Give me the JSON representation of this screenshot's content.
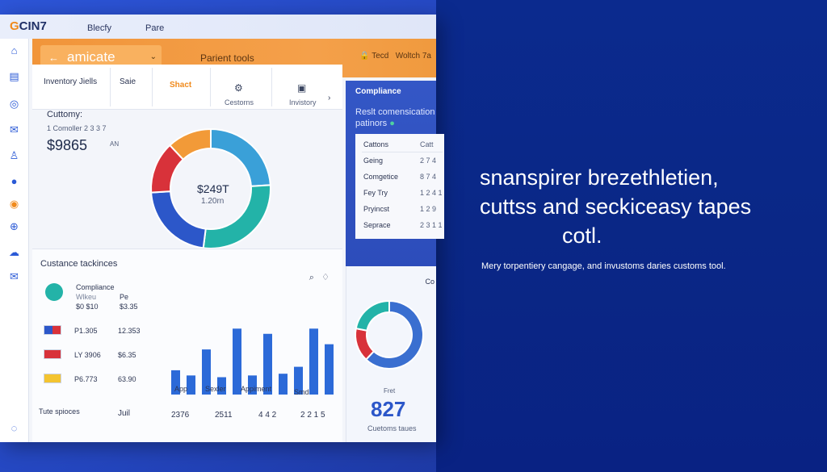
{
  "brand": {
    "name": "CIN7"
  },
  "topnav": [
    "Blecfy",
    "Pare"
  ],
  "sidebar_icons": [
    "home-icon",
    "clipboard-icon",
    "location-icon",
    "mail-icon",
    "user-icon",
    "globe-icon",
    "target-icon",
    "network-icon",
    "cloud-icon",
    "message-icon",
    "help-icon"
  ],
  "header": {
    "back_glyph": "←",
    "dropdown_label": "amicate",
    "dropdown_caret": "⌄",
    "center_label": "Parient tools",
    "right_label": "Tecd",
    "right_label_2": "Woltch 7a"
  },
  "tabs": {
    "items": [
      "Inventory Jiells",
      "Saie",
      "Shact"
    ],
    "icon_tabs": [
      "Cestorns",
      "Invistory"
    ],
    "arrow": "›"
  },
  "summary": {
    "label": "Cuttomy:",
    "sub": "1 Comoller 2 3 3 7",
    "value": "$9865",
    "side_label": "AN"
  },
  "donut": {
    "center_value": "$249T",
    "center_sub": "1.20rn",
    "colors": [
      "#3aa0d8",
      "#23b3a8",
      "#2c57c9",
      "#d8323a",
      "#f29a38"
    ],
    "fractions": [
      0.24,
      0.28,
      0.22,
      0.14,
      0.12
    ]
  },
  "compliance": {
    "title": "Compliance",
    "subtitle_1": "Reslt comensication",
    "subtitle_2": "patinors",
    "rows": [
      {
        "name": "Cattons",
        "value": "Catt"
      },
      {
        "name": "Geing",
        "value": "2 7 4"
      },
      {
        "name": "Comgetice",
        "value": "8 7 4"
      },
      {
        "name": "Fey Try",
        "value": "1 2 4 1"
      },
      {
        "name": "Pryincst",
        "value": "1 2 9"
      },
      {
        "name": "Seprace",
        "value": "2 3 1 1"
      }
    ]
  },
  "tracking": {
    "title": "Custance tackinces",
    "icons": [
      "search-icon",
      "bell-icon"
    ],
    "compliance_item": {
      "name": "Compliance",
      "sub": "Wlkeu",
      "value_a": "$0 $10",
      "value_b": "$3.35"
    },
    "rows": [
      {
        "code": "P1.305",
        "value": "12.353",
        "flag": "#2c57c9"
      },
      {
        "code": "LY 3906",
        "value": "$6.35",
        "flag": "#d8323a"
      },
      {
        "code": "P6.773",
        "value": "63.90",
        "flag": "#f4c430"
      }
    ],
    "footer_label": "Tute spioces",
    "footer_col": "Juil",
    "footer_values": [
      "2376",
      "2511",
      "4 4 2",
      "2 2 1 5"
    ],
    "bar_labels": [
      "App",
      "Sexler",
      "Appiment",
      "Smd"
    ]
  },
  "bars": {
    "values": [
      28,
      22,
      52,
      20,
      76,
      22,
      70,
      24,
      32,
      76,
      58
    ],
    "color": "#2c6ad8"
  },
  "mini": {
    "corner": "Co",
    "caption_small": "Fret",
    "big_value": "827",
    "caption": "Cuetoms taues",
    "donut_colors": [
      "#3a6fd0",
      "#d8323a",
      "#23b3a8"
    ],
    "donut_fractions": [
      0.62,
      0.16,
      0.22
    ]
  },
  "hero": {
    "title_line_1": "snanspirer brezethletien,",
    "title_line_2": "cuttss and seckiceasy tapes",
    "title_line_3": "cotl.",
    "subtitle": "Mery torpentiery cangage, and invustoms daries customs tool."
  }
}
